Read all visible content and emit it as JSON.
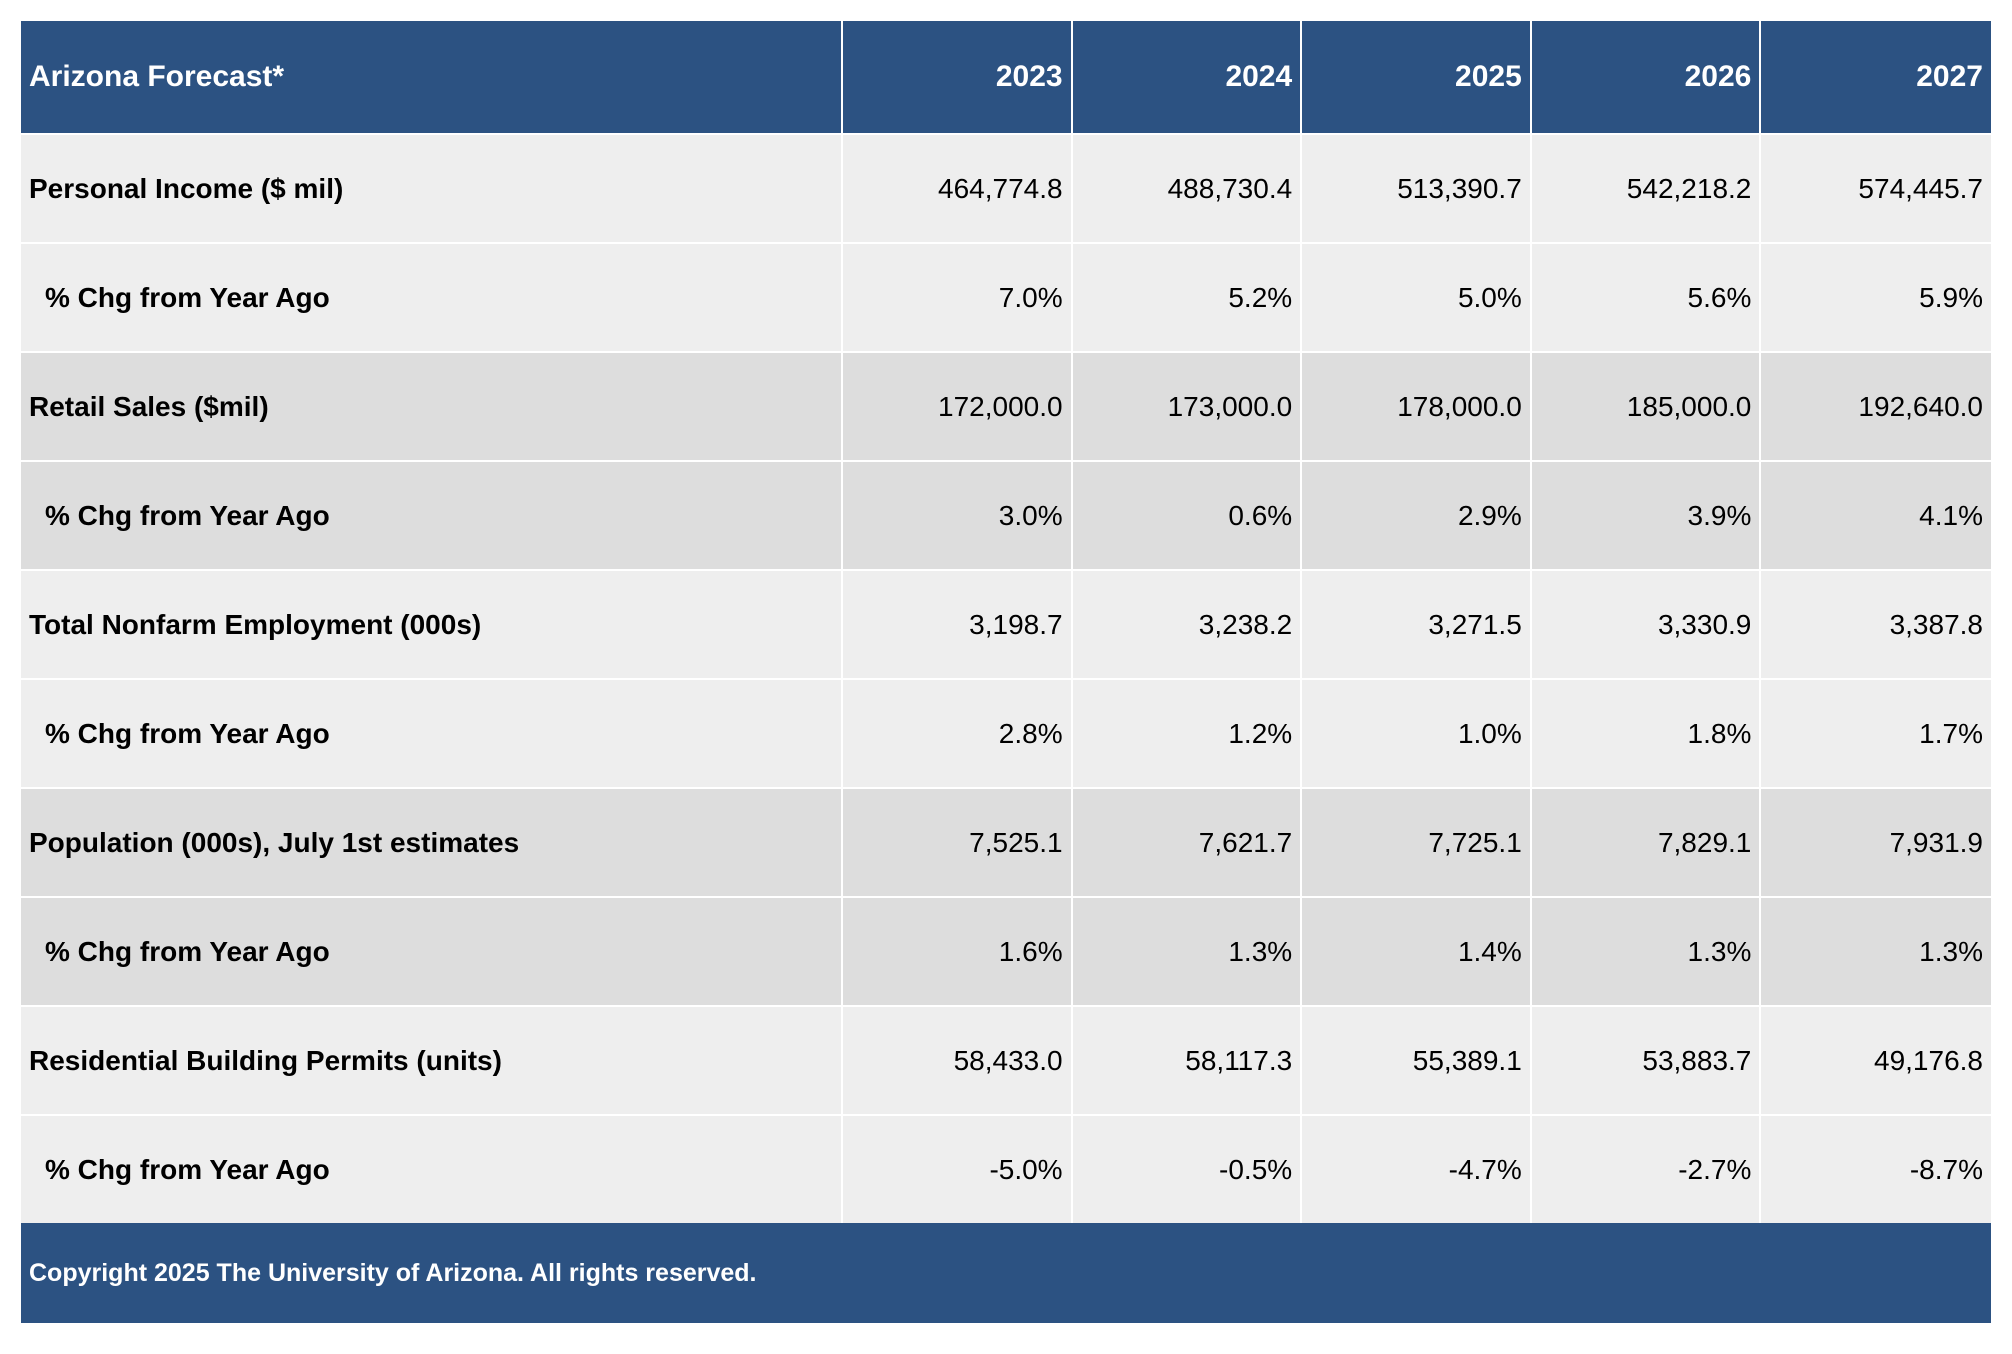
{
  "table": {
    "title": "Arizona Forecast*",
    "years": [
      "2023",
      "2024",
      "2025",
      "2026",
      "2027"
    ],
    "rows": [
      {
        "label": "Personal Income ($ mil)",
        "values": [
          "464,774.8",
          "488,730.4",
          "513,390.7",
          "542,218.2",
          "574,445.7"
        ]
      },
      {
        "label": "% Chg from Year Ago",
        "values": [
          "7.0%",
          "5.2%",
          "5.0%",
          "5.6%",
          "5.9%"
        ]
      },
      {
        "label": "Retail Sales ($mil)",
        "values": [
          "172,000.0",
          "173,000.0",
          "178,000.0",
          "185,000.0",
          "192,640.0"
        ]
      },
      {
        "label": "% Chg from Year Ago",
        "values": [
          "3.0%",
          "0.6%",
          "2.9%",
          "3.9%",
          "4.1%"
        ]
      },
      {
        "label": "Total Nonfarm Employment (000s)",
        "values": [
          "3,198.7",
          "3,238.2",
          "3,271.5",
          "3,330.9",
          "3,387.8"
        ]
      },
      {
        "label": "% Chg from Year Ago",
        "values": [
          "2.8%",
          "1.2%",
          "1.0%",
          "1.8%",
          "1.7%"
        ]
      },
      {
        "label": "Population (000s), July 1st estimates",
        "values": [
          "7,525.1",
          "7,621.7",
          "7,725.1",
          "7,829.1",
          "7,931.9"
        ]
      },
      {
        "label": "% Chg from Year Ago",
        "values": [
          "1.6%",
          "1.3%",
          "1.4%",
          "1.3%",
          "1.3%"
        ]
      },
      {
        "label": "Residential Building Permits (units)",
        "values": [
          "58,433.0",
          "58,117.3",
          "55,389.1",
          "53,883.7",
          "49,176.8"
        ]
      },
      {
        "label": "% Chg from Year Ago",
        "values": [
          "-5.0%",
          "-0.5%",
          "-4.7%",
          "-2.7%",
          "-8.7%"
        ]
      }
    ],
    "footer": "Copyright 2025 The University of Arizona. All rights reserved."
  },
  "colors": {
    "header_bg": "#2c5282",
    "band_light": "#eeeeee",
    "band_dark": "#dddddd"
  }
}
